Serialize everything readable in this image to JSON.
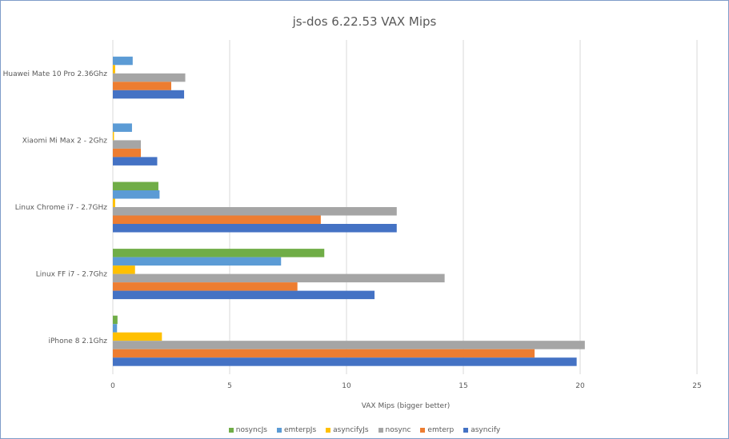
{
  "chart_data": {
    "type": "bar",
    "orientation": "horizontal",
    "title": "js-dos 6.22.53 VAX Mips",
    "xlabel": "VAX Mips (bigger better)",
    "ylabel": "",
    "xlim": [
      0,
      25
    ],
    "xticks": [
      "0",
      "5",
      "10",
      "15",
      "20",
      "25"
    ],
    "grid": true,
    "legend_position": "bottom",
    "categories": [
      "Huawei Mate 10 Pro 2.36Ghz",
      "Xiaomi Mi Max 2 - 2Ghz",
      "Linux Chrome i7 - 2.7GHz",
      "Linux FF i7 - 2.7Ghz",
      "iPhone 8 2.1Ghz"
    ],
    "series": [
      {
        "name": "nosyncJs",
        "color": "#70ad47",
        "values": [
          0,
          0,
          1.95,
          9.05,
          0.2
        ]
      },
      {
        "name": "emterpJs",
        "color": "#5b9bd5",
        "values": [
          0.85,
          0.82,
          2.0,
          7.2,
          0.18
        ]
      },
      {
        "name": "asyncifyJs",
        "color": "#ffc000",
        "values": [
          0.1,
          0.05,
          0.1,
          0.95,
          2.1
        ]
      },
      {
        "name": "nosync",
        "color": "#a5a5a5",
        "values": [
          3.1,
          1.2,
          12.15,
          14.2,
          20.2
        ]
      },
      {
        "name": "emterp",
        "color": "#ed7d31",
        "values": [
          2.5,
          1.2,
          8.9,
          7.9,
          18.05
        ]
      },
      {
        "name": "asyncify",
        "color": "#4472c4",
        "values": [
          3.05,
          1.9,
          12.15,
          11.2,
          19.85
        ]
      }
    ]
  }
}
